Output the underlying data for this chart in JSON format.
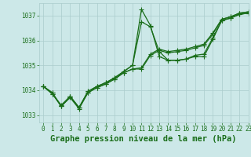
{
  "title": "Graphe pression niveau de la mer (hPa)",
  "bg_color": "#cce8e8",
  "grid_color": "#aacccc",
  "line_color": "#1a6e1a",
  "marker_color": "#1a6e1a",
  "xlim": [
    -0.5,
    23
  ],
  "ylim": [
    1032.7,
    1037.5
  ],
  "xticks": [
    0,
    1,
    2,
    3,
    4,
    5,
    6,
    7,
    8,
    9,
    10,
    11,
    12,
    13,
    14,
    15,
    16,
    17,
    18,
    19,
    20,
    21,
    22,
    23
  ],
  "yticks": [
    1033,
    1034,
    1035,
    1036,
    1037
  ],
  "series": [
    [
      1034.15,
      1033.9,
      1033.35,
      1033.75,
      1033.3,
      1033.95,
      1034.15,
      1034.3,
      1034.5,
      1034.75,
      1035.0,
      1037.25,
      1036.6,
      1035.35,
      1035.2,
      1035.2,
      1035.25,
      1035.35,
      1035.35,
      1036.05,
      1036.8,
      1036.9,
      1037.05,
      1037.1
    ],
    [
      1034.15,
      1033.9,
      1033.35,
      1033.75,
      1033.3,
      1033.95,
      1034.15,
      1034.3,
      1034.5,
      1034.75,
      1035.0,
      1036.75,
      1036.55,
      1035.55,
      1035.2,
      1035.2,
      1035.25,
      1035.4,
      1035.45,
      1036.1,
      1036.8,
      1036.9,
      1037.05,
      1037.1
    ],
    [
      1034.15,
      1033.85,
      1033.35,
      1033.7,
      1033.25,
      1033.9,
      1034.1,
      1034.25,
      1034.45,
      1034.7,
      1034.85,
      1034.9,
      1035.45,
      1035.65,
      1035.55,
      1035.6,
      1035.65,
      1035.75,
      1035.85,
      1036.3,
      1036.85,
      1036.95,
      1037.1,
      1037.15
    ],
    [
      1034.15,
      1033.85,
      1033.4,
      1033.75,
      1033.3,
      1033.9,
      1034.1,
      1034.25,
      1034.45,
      1034.7,
      1034.85,
      1034.85,
      1035.4,
      1035.6,
      1035.5,
      1035.55,
      1035.6,
      1035.7,
      1035.8,
      1036.25,
      1036.85,
      1036.95,
      1037.1,
      1037.15
    ]
  ],
  "font_color": "#1a6e1a",
  "tick_fontsize": 5.5,
  "title_fontsize": 7.5,
  "marker_size": 2.5,
  "linewidth": 0.9
}
